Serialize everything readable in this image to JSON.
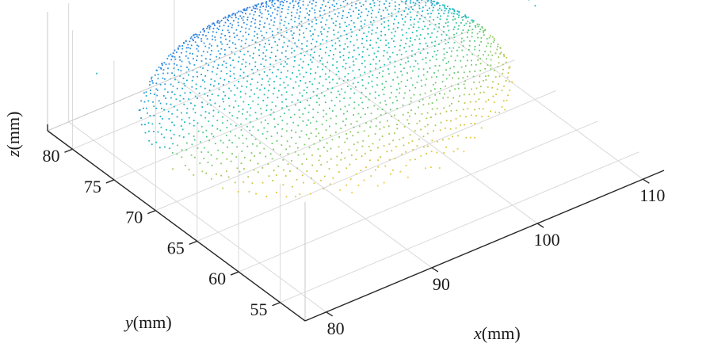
{
  "chart_data": {
    "type": "scatter",
    "projection": "3d",
    "colormap": "parula",
    "colormap_stops": [
      "#3b3fd9",
      "#2f8fe0",
      "#16bfb8",
      "#6bcb6e",
      "#d9c43a",
      "#f4d23a"
    ],
    "grid": true,
    "axes": {
      "x": {
        "label": "x",
        "unit": "(mm)",
        "ticks": [
          80,
          90,
          100,
          110
        ],
        "range": [
          78,
          112
        ]
      },
      "y": {
        "label": "y",
        "unit": "(mm)",
        "ticks": [
          55,
          60,
          65,
          70,
          75,
          80
        ],
        "range": [
          52,
          83
        ]
      },
      "z": {
        "label": "z",
        "unit": "(mm)",
        "ticks": []
      }
    },
    "point_cloud": {
      "shape": "ellipsoidal cap",
      "center_x": 94.5,
      "center_y": 70.5,
      "half_width_x": 15,
      "half_width_y": 12,
      "grid_step": 0.5,
      "color_by": "height (blue = top, yellow = bottom)"
    }
  }
}
